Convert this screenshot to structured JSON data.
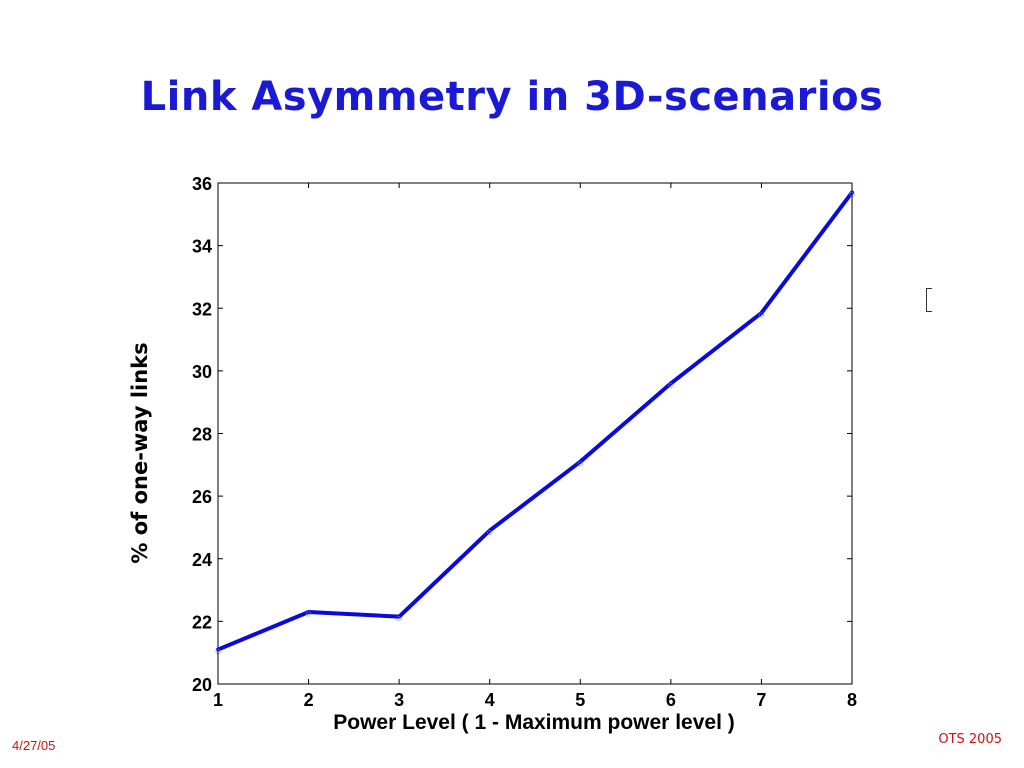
{
  "slide": {
    "title": "Link Asymmetry in 3D-scenarios",
    "footer_date": "4/27/05",
    "footer_right": "OTS 2005"
  },
  "chart_data": {
    "type": "line",
    "title": "",
    "xlabel": "Power Level ( 1 - Maximum power level )",
    "ylabel": "% of one-way links",
    "x": [
      1,
      2,
      3,
      4,
      5,
      6,
      7,
      8
    ],
    "xlim": [
      1,
      8
    ],
    "ylim": [
      20,
      36
    ],
    "xticks": [
      1,
      2,
      3,
      4,
      5,
      6,
      7,
      8
    ],
    "yticks": [
      20,
      22,
      24,
      26,
      28,
      30,
      32,
      34,
      36
    ],
    "grid": false,
    "legend": "none",
    "series": [
      {
        "color": "#0a0adc",
        "values": [
          21.1,
          22.3,
          22.15,
          24.9,
          27.1,
          29.6,
          31.85,
          35.7
        ]
      }
    ]
  }
}
